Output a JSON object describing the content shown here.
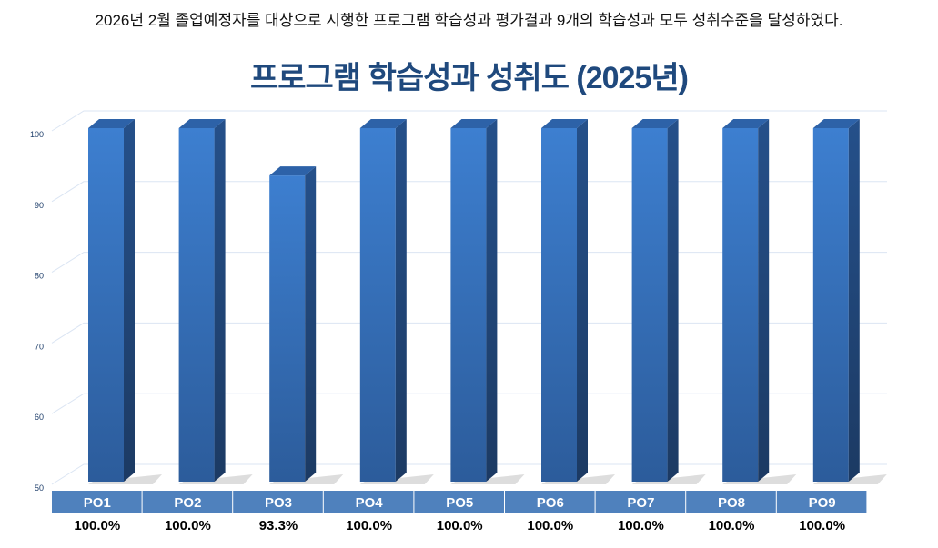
{
  "note": "2026년 2월 졸업예정자를 대상으로 시행한 프로그램 학습성과 평가결과 9개의 학습성과 모두 성취수준을 달성하였다.",
  "chart_data": {
    "type": "bar",
    "title": "프로그램 학습성과 성취도 (2025년)",
    "categories": [
      "PO1",
      "PO2",
      "PO3",
      "PO4",
      "PO5",
      "PO6",
      "PO7",
      "PO8",
      "PO9"
    ],
    "values": [
      100.0,
      100.0,
      93.3,
      100.0,
      100.0,
      100.0,
      100.0,
      100.0,
      100.0
    ],
    "value_labels": [
      "100.0%",
      "100.0%",
      "93.3%",
      "100.0%",
      "100.0%",
      "100.0%",
      "100.0%",
      "100.0%",
      "100.0%"
    ],
    "yticks": [
      "50",
      "60",
      "70",
      "80",
      "90",
      "100"
    ],
    "ylim": [
      50,
      100
    ],
    "grid": true,
    "bar_color": "#3a78c8",
    "header_color": "#4f81bd"
  }
}
